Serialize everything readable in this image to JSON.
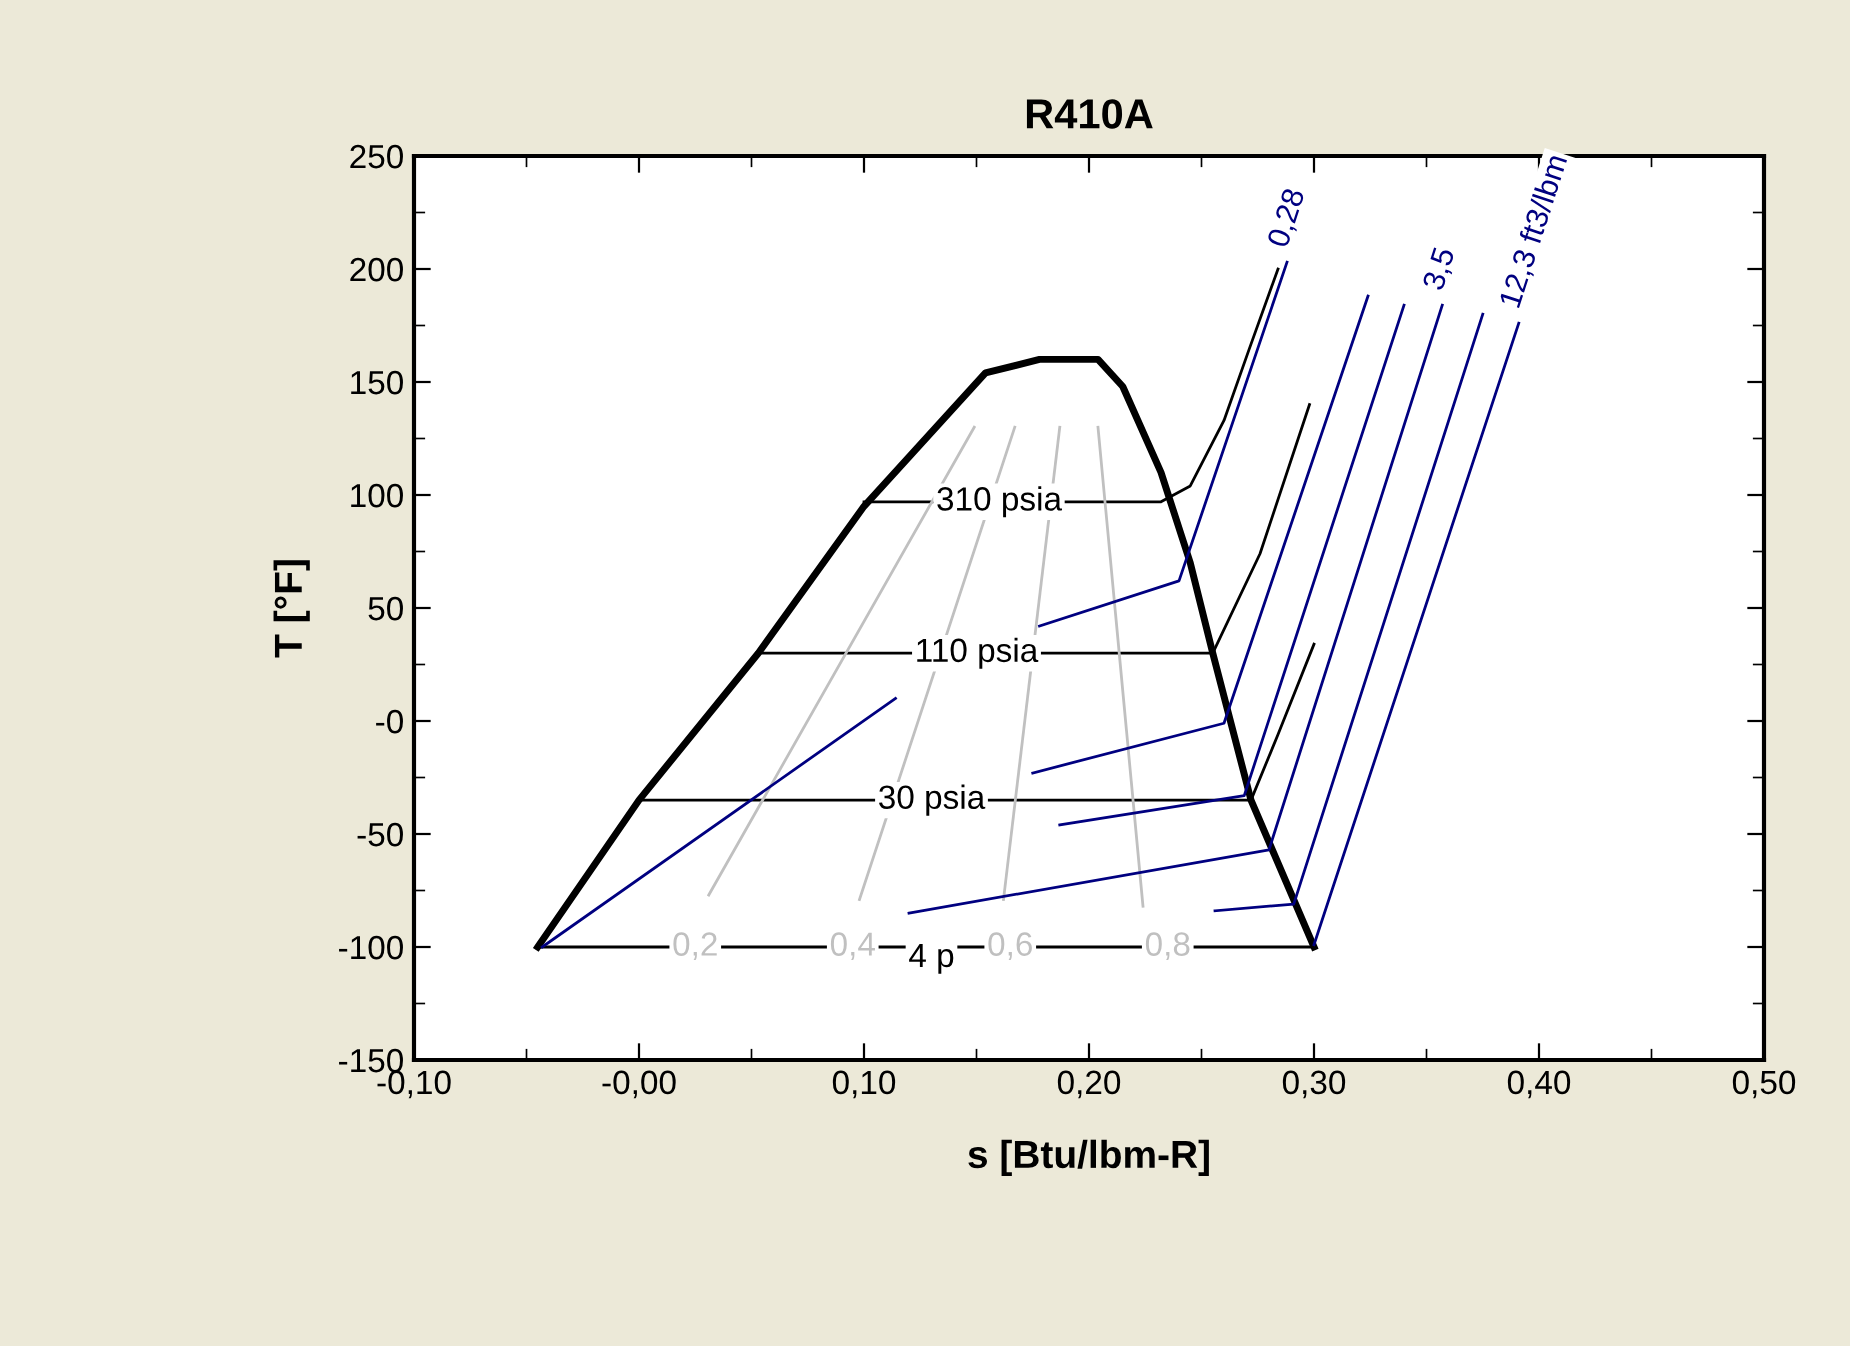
{
  "chart_data": {
    "type": "line",
    "title": "R410A",
    "xlabel": "s [Btu/lbm-R]",
    "ylabel": "T [°F]",
    "xlim": [
      -0.1,
      0.5
    ],
    "ylim": [
      -150,
      250
    ],
    "xticks": [
      {
        "value": -0.1,
        "label": "-0,10"
      },
      {
        "value": 0.0,
        "label": "-0,00"
      },
      {
        "value": 0.1,
        "label": "0,10"
      },
      {
        "value": 0.2,
        "label": "0,20"
      },
      {
        "value": 0.3,
        "label": "0,30"
      },
      {
        "value": 0.4,
        "label": "0,40"
      },
      {
        "value": 0.5,
        "label": "0,50"
      }
    ],
    "yticks": [
      -150,
      -100,
      -50,
      {
        "value": 0,
        "label": "-0"
      },
      50,
      100,
      150,
      200,
      250
    ],
    "grid": false,
    "legend": false,
    "marker": "none",
    "line_style": "solid",
    "series": [
      {
        "color": "#000000",
        "x": [
          -0.045,
          0.0,
          0.053,
          0.1,
          0.154,
          0.178,
          0.204,
          0.215,
          0.232,
          0.245,
          0.255,
          0.272,
          0.3
        ],
        "values": [
          -100,
          -35,
          30,
          95,
          154,
          160,
          160,
          148,
          110,
          70,
          30,
          -35,
          -100
        ]
      },
      {
        "color": "#000000",
        "x": [
          0.1,
          0.232,
          0.245,
          0.26,
          0.271,
          0.284
        ],
        "values": [
          97,
          97,
          104,
          133,
          164,
          200
        ]
      },
      {
        "color": "#000000",
        "x": [
          0.053,
          0.255,
          0.276,
          0.298
        ],
        "values": [
          30,
          30,
          74,
          140
        ]
      },
      {
        "color": "#000000",
        "x": [
          0.0,
          0.272,
          0.284,
          0.3
        ],
        "values": [
          -35,
          -35,
          -6,
          34
        ]
      },
      {
        "color": "#000000",
        "x": [
          -0.045,
          0.3
        ],
        "values": [
          -100,
          -100
        ]
      },
      {
        "color": "#c0c0c0",
        "x": [
          0.031,
          0.149
        ],
        "values": [
          -77,
          130
        ]
      },
      {
        "color": "#c0c0c0",
        "x": [
          0.098,
          0.167
        ],
        "values": [
          -79,
          130
        ]
      },
      {
        "color": "#c0c0c0",
        "x": [
          0.162,
          0.187
        ],
        "values": [
          -79,
          130
        ]
      },
      {
        "color": "#c0c0c0",
        "x": [
          0.224,
          0.204
        ],
        "values": [
          -82,
          130
        ]
      },
      {
        "color": "#000080",
        "x": [
          0.178,
          0.24,
          0.288
        ],
        "values": [
          42,
          62,
          203
        ]
      },
      {
        "color": "#000080",
        "x": [
          0.175,
          0.26,
          0.324
        ],
        "values": [
          -23,
          -1,
          188
        ]
      },
      {
        "color": "#000080",
        "x": [
          0.187,
          0.269,
          0.34
        ],
        "values": [
          -46,
          -33,
          184
        ]
      },
      {
        "color": "#000080",
        "x": [
          0.12,
          0.28,
          0.357
        ],
        "values": [
          -85,
          -57,
          184
        ]
      },
      {
        "color": "#000080",
        "x": [
          0.256,
          0.291,
          0.375
        ],
        "values": [
          -84,
          -81,
          180
        ]
      },
      {
        "color": "#000080",
        "x": [
          0.3,
          0.391
        ],
        "values": [
          -99,
          176
        ]
      },
      {
        "color": "#000080",
        "x": [
          -0.043,
          0.114
        ],
        "values": [
          -100,
          10
        ]
      }
    ],
    "annotations": [
      {
        "text": "310 psia",
        "x": 0.16,
        "y": 97
      },
      {
        "text": "110 psia",
        "x": 0.15,
        "y": 30
      },
      {
        "text": "30 psia",
        "x": 0.13,
        "y": -35
      },
      {
        "text": "4 p",
        "x": 0.13,
        "y": -105
      },
      {
        "text": "0,2",
        "x": 0.025,
        "y": -100
      },
      {
        "text": "0,4",
        "x": 0.095,
        "y": -100
      },
      {
        "text": "0,6",
        "x": 0.165,
        "y": -100
      },
      {
        "text": "0,8",
        "x": 0.235,
        "y": -100
      },
      {
        "text": "0,28",
        "x": 0.288,
        "y": 203
      },
      {
        "text": "3,5",
        "x": 0.357,
        "y": 184
      },
      {
        "text": "12,3 ft3/lbm",
        "x": 0.391,
        "y": 176
      }
    ]
  }
}
